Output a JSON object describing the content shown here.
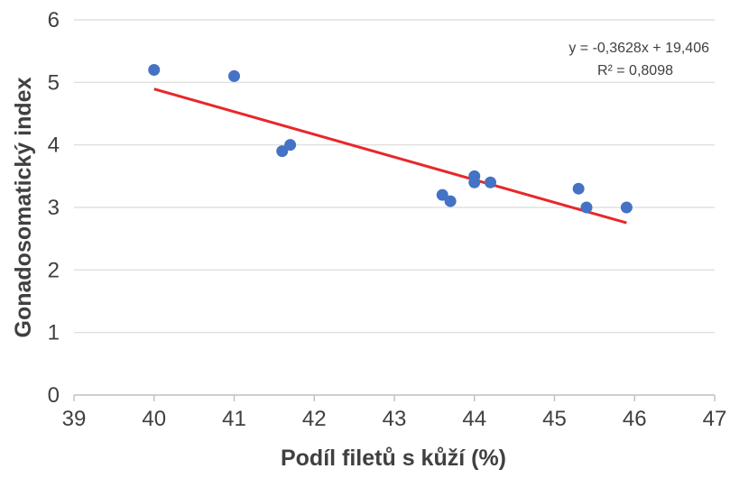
{
  "chart_data": {
    "type": "scatter",
    "title": "",
    "xlabel": "Podíl filetů s kůží  (%)",
    "ylabel": "Gonadosomatický index",
    "xlim": [
      39,
      47
    ],
    "ylim": [
      0,
      6
    ],
    "xticks": [
      39,
      40,
      41,
      42,
      43,
      44,
      45,
      46,
      47
    ],
    "yticks": [
      0,
      1,
      2,
      3,
      4,
      5,
      6
    ],
    "grid": "horizontal",
    "legend": "none",
    "points": [
      {
        "x": 40.0,
        "y": 5.2
      },
      {
        "x": 41.0,
        "y": 5.1
      },
      {
        "x": 41.6,
        "y": 3.9
      },
      {
        "x": 41.7,
        "y": 4.0
      },
      {
        "x": 43.6,
        "y": 3.2
      },
      {
        "x": 43.7,
        "y": 3.1
      },
      {
        "x": 44.0,
        "y": 3.5
      },
      {
        "x": 44.0,
        "y": 3.4
      },
      {
        "x": 44.2,
        "y": 3.4
      },
      {
        "x": 45.3,
        "y": 3.3
      },
      {
        "x": 45.4,
        "y": 3.0
      },
      {
        "x": 45.9,
        "y": 3.0
      }
    ],
    "trendline": {
      "type": "linear",
      "slope": -0.3628,
      "intercept": 19.406,
      "x_range": [
        40.0,
        45.9
      ],
      "equation_label": "y = -0,3628x + 19,406",
      "r2_label": "R² = 0,8098"
    },
    "colors": {
      "points": "#4472C4",
      "trendline": "#E8272A",
      "grid": "#D9D9D9",
      "axis": "#BFBFBF",
      "text": "#404040"
    }
  }
}
